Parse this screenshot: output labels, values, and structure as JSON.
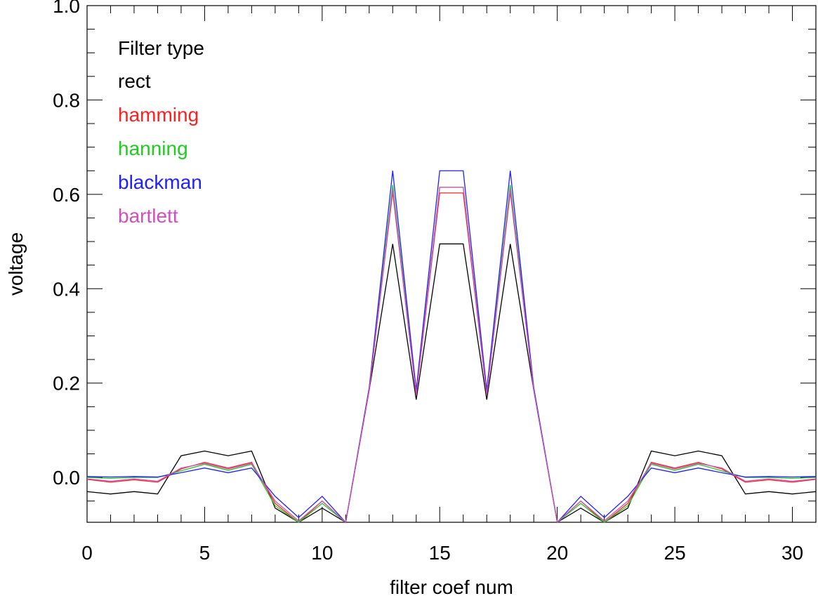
{
  "chart_data": {
    "type": "line",
    "title": "",
    "xlabel": "filter coef num",
    "ylabel": "voltage",
    "xlim": [
      0,
      31
    ],
    "ylim": [
      -0.095,
      1.0
    ],
    "x_ticks": [
      0,
      5,
      10,
      15,
      20,
      25,
      30
    ],
    "x_tick_labels": [
      "0",
      "5",
      "10",
      "15",
      "20",
      "25",
      "30"
    ],
    "y_ticks": [
      0.0,
      0.2,
      0.4,
      0.6,
      0.8,
      1.0
    ],
    "y_tick_labels": [
      "0.0",
      "0.2",
      "0.4",
      "0.6",
      "0.8",
      "1.0"
    ],
    "grid": false,
    "legend": {
      "position": "top-left",
      "title": "Filter type",
      "entries": [
        {
          "label": "rect",
          "color": "#000000"
        },
        {
          "label": "hamming",
          "color": "#ff2020"
        },
        {
          "label": "hanning",
          "color": "#20cc20"
        },
        {
          "label": "blackman",
          "color": "#2020ff"
        },
        {
          "label": "bartlett",
          "color": "#d050c0"
        }
      ]
    },
    "x": [
      0,
      1,
      2,
      3,
      4,
      5,
      6,
      7,
      8,
      9,
      10,
      11,
      12,
      13,
      14,
      15,
      16,
      17,
      18,
      19,
      20,
      21,
      22,
      23,
      24,
      25,
      26,
      27,
      28,
      29,
      30,
      31
    ],
    "series": [
      {
        "name": "rect",
        "color": "#000000",
        "values": [
          -0.03,
          -0.035,
          -0.03,
          -0.035,
          0.046,
          0.056,
          0.046,
          0.056,
          -0.065,
          -0.095,
          -0.065,
          -0.095,
          0.185,
          0.495,
          0.165,
          0.495,
          0.495,
          0.165,
          0.495,
          0.185,
          -0.095,
          -0.065,
          -0.095,
          -0.065,
          0.056,
          0.046,
          0.056,
          0.046,
          -0.035,
          -0.03,
          -0.035,
          -0.03
        ]
      },
      {
        "name": "hamming",
        "color": "#ff2020",
        "values": [
          -0.004,
          -0.01,
          -0.005,
          -0.01,
          0.018,
          0.032,
          0.02,
          0.032,
          -0.055,
          -0.095,
          -0.05,
          -0.095,
          0.185,
          0.605,
          0.175,
          0.603,
          0.603,
          0.175,
          0.605,
          0.185,
          -0.095,
          -0.05,
          -0.095,
          -0.055,
          0.032,
          0.02,
          0.032,
          0.018,
          -0.01,
          -0.005,
          -0.01,
          -0.004
        ]
      },
      {
        "name": "hanning",
        "color": "#20cc20",
        "values": [
          0.0,
          -0.002,
          0.0,
          0.0,
          0.014,
          0.028,
          0.015,
          0.028,
          -0.06,
          -0.095,
          -0.055,
          -0.095,
          0.19,
          0.62,
          0.18,
          0.615,
          0.615,
          0.18,
          0.62,
          0.19,
          -0.095,
          -0.055,
          -0.095,
          -0.06,
          0.028,
          0.015,
          0.028,
          0.014,
          0.0,
          0.0,
          -0.002,
          0.0
        ]
      },
      {
        "name": "blackman",
        "color": "#2020ff",
        "values": [
          0.002,
          0.001,
          0.002,
          0.001,
          0.01,
          0.02,
          0.01,
          0.02,
          -0.04,
          -0.085,
          -0.04,
          -0.095,
          0.19,
          0.65,
          0.185,
          0.65,
          0.65,
          0.185,
          0.65,
          0.19,
          -0.095,
          -0.04,
          -0.085,
          -0.04,
          0.02,
          0.01,
          0.02,
          0.01,
          0.001,
          0.002,
          0.001,
          0.002
        ]
      },
      {
        "name": "bartlett",
        "color": "#d050c0",
        "values": [
          -0.003,
          -0.008,
          -0.003,
          -0.008,
          0.02,
          0.03,
          0.018,
          0.03,
          -0.05,
          -0.092,
          -0.05,
          -0.095,
          0.185,
          0.61,
          0.175,
          0.615,
          0.615,
          0.175,
          0.61,
          0.185,
          -0.095,
          -0.05,
          -0.092,
          -0.05,
          0.03,
          0.018,
          0.03,
          0.02,
          -0.008,
          -0.003,
          -0.008,
          -0.003
        ]
      }
    ]
  }
}
